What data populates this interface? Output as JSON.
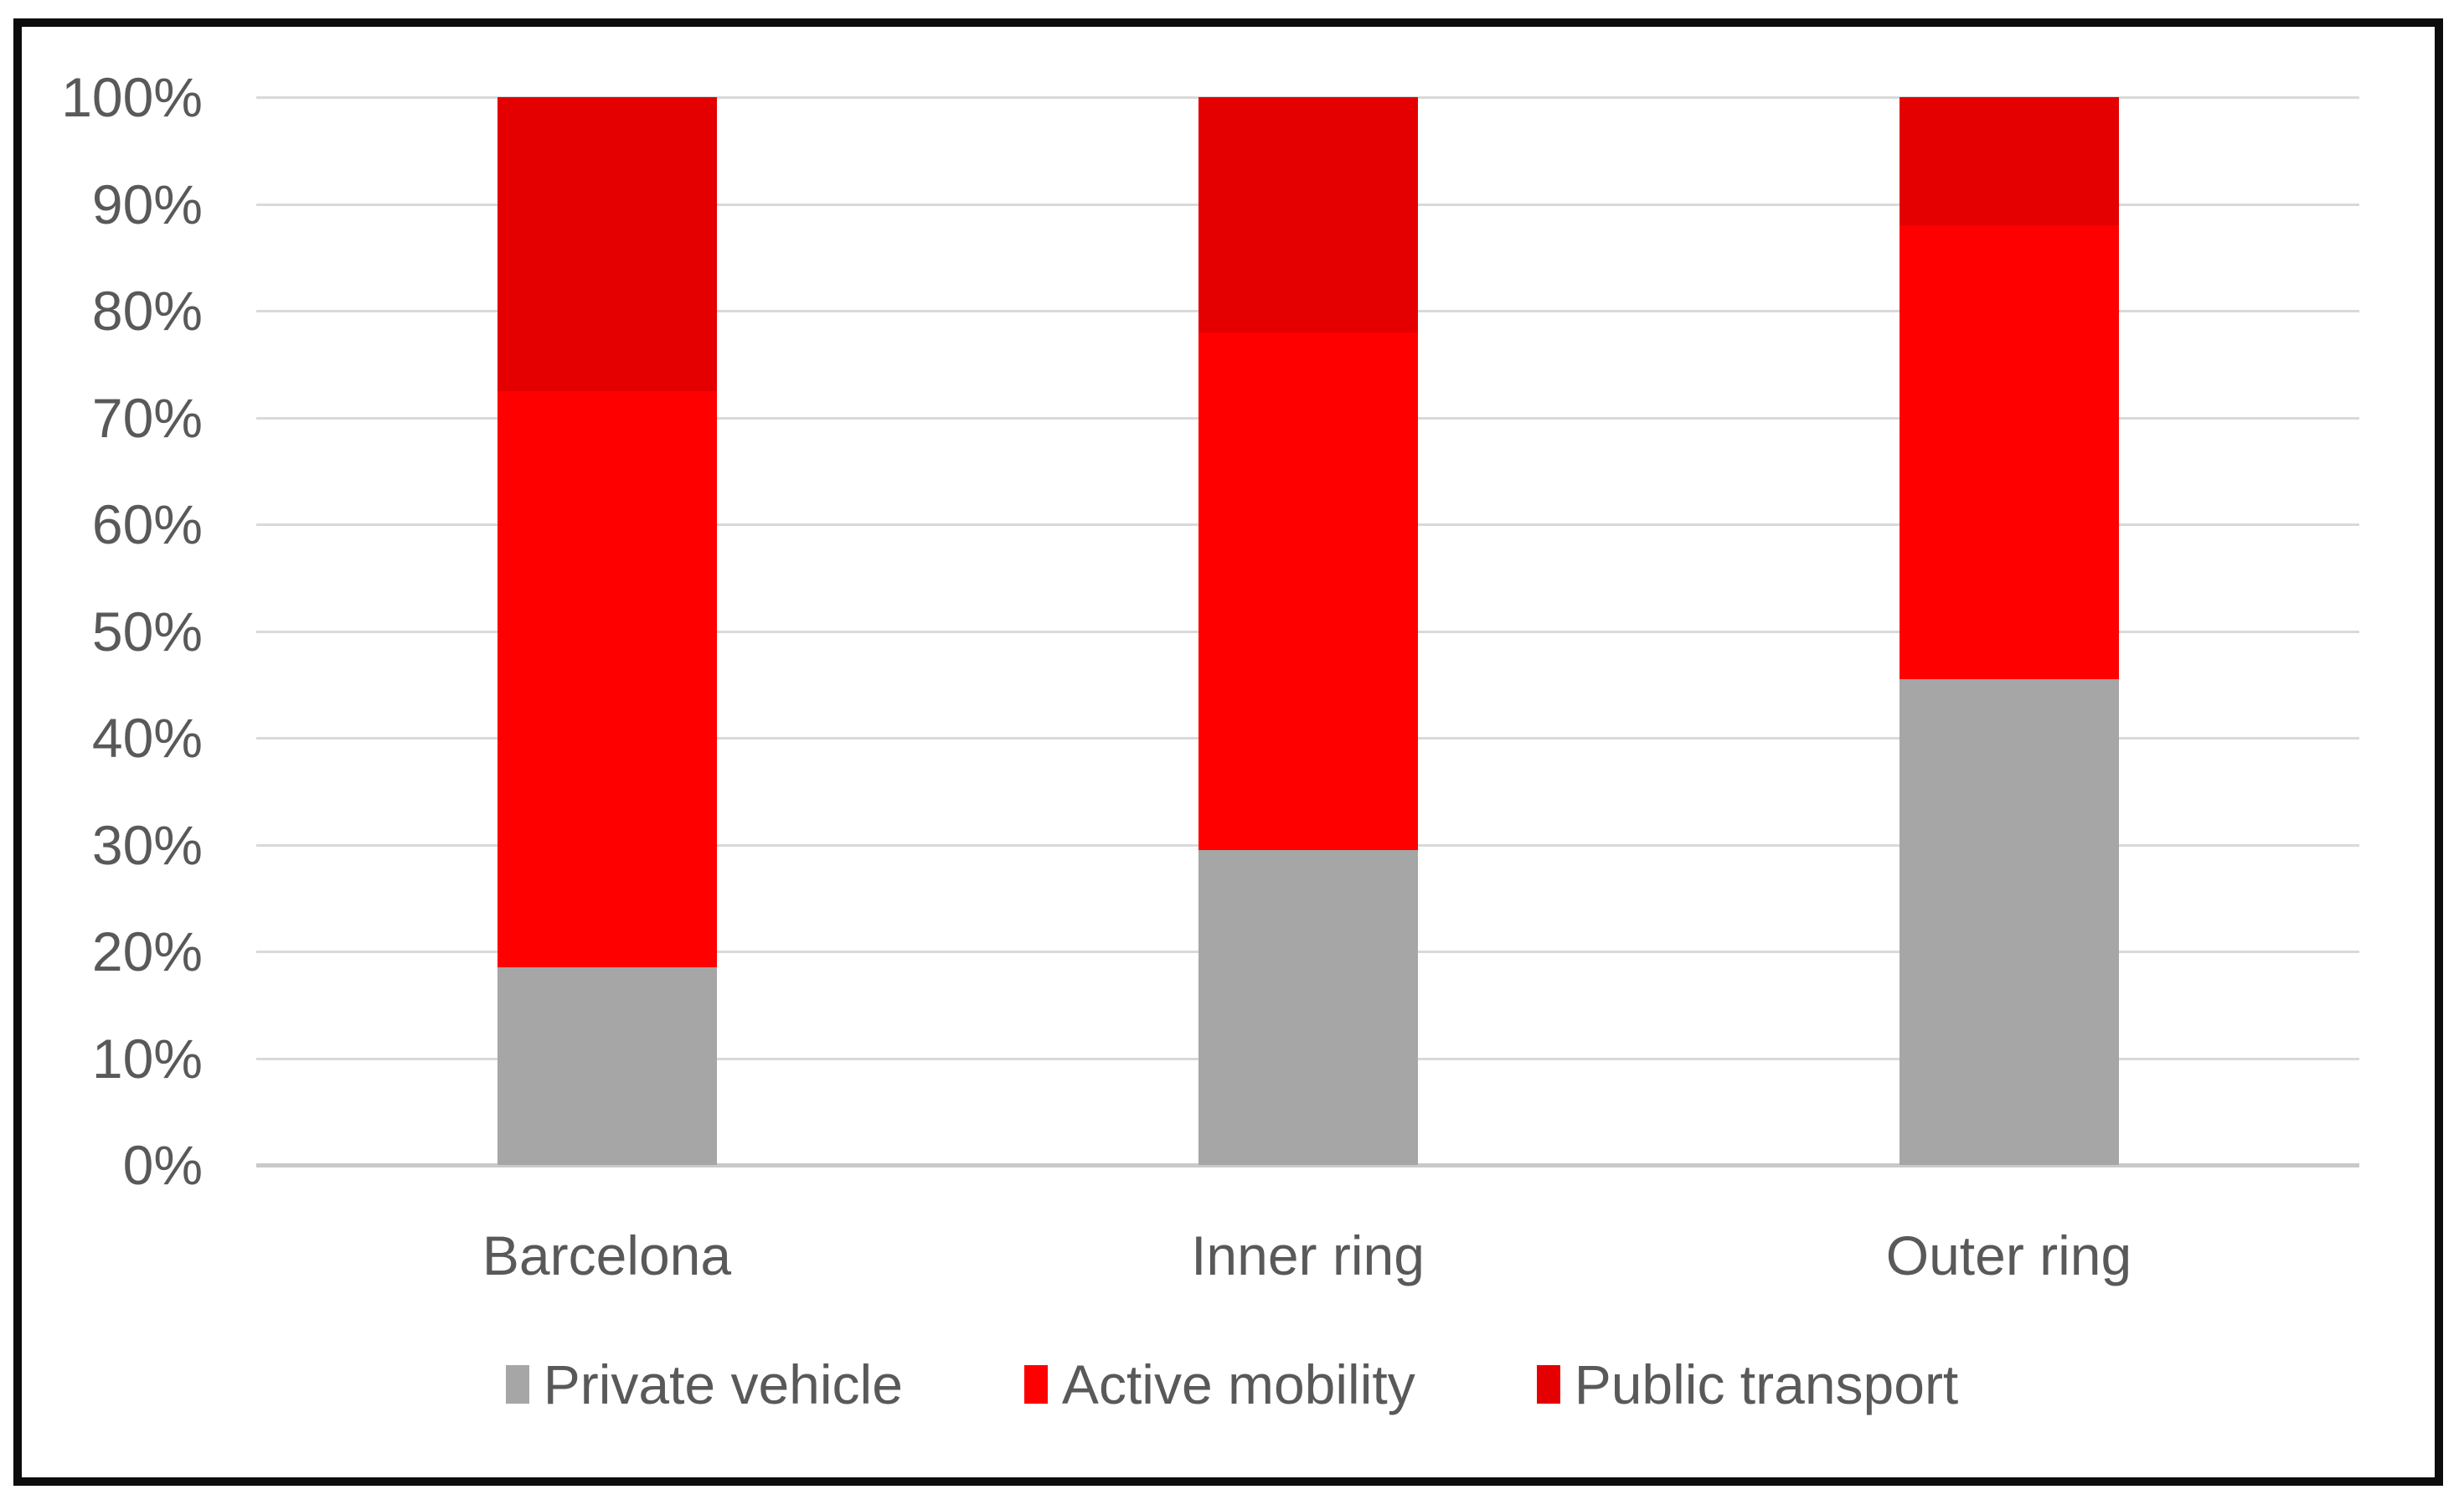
{
  "chart_data": {
    "type": "bar",
    "stacked": true,
    "stacked_total": 100,
    "title": "",
    "xlabel": "",
    "ylabel": "",
    "categories": [
      "Barcelona",
      "Inner ring",
      "Outer ring"
    ],
    "series": [
      {
        "name": "Private vehicle",
        "color": "#a6a6a6",
        "values": [
          18.5,
          29.5,
          45.5
        ]
      },
      {
        "name": "Active mobility",
        "color": "#fe0000",
        "values": [
          54.0,
          48.5,
          42.5
        ]
      },
      {
        "name": "Public transport",
        "color": "#e40000",
        "values": [
          27.5,
          22.0,
          12.0
        ]
      }
    ],
    "ylim": [
      0,
      100
    ],
    "yticks": [
      "0%",
      "10%",
      "20%",
      "30%",
      "40%",
      "50%",
      "60%",
      "70%",
      "80%",
      "90%",
      "100%"
    ],
    "grid": true,
    "legend_position": "bottom"
  },
  "colors": {
    "tick_text": "#595959",
    "category_text": "#595959",
    "legend_text": "#595959",
    "gridline": "#d9d9d9",
    "zero_line": "#c9c9c9",
    "frame_border": "#0c0c0c",
    "background": "#ffffff"
  }
}
